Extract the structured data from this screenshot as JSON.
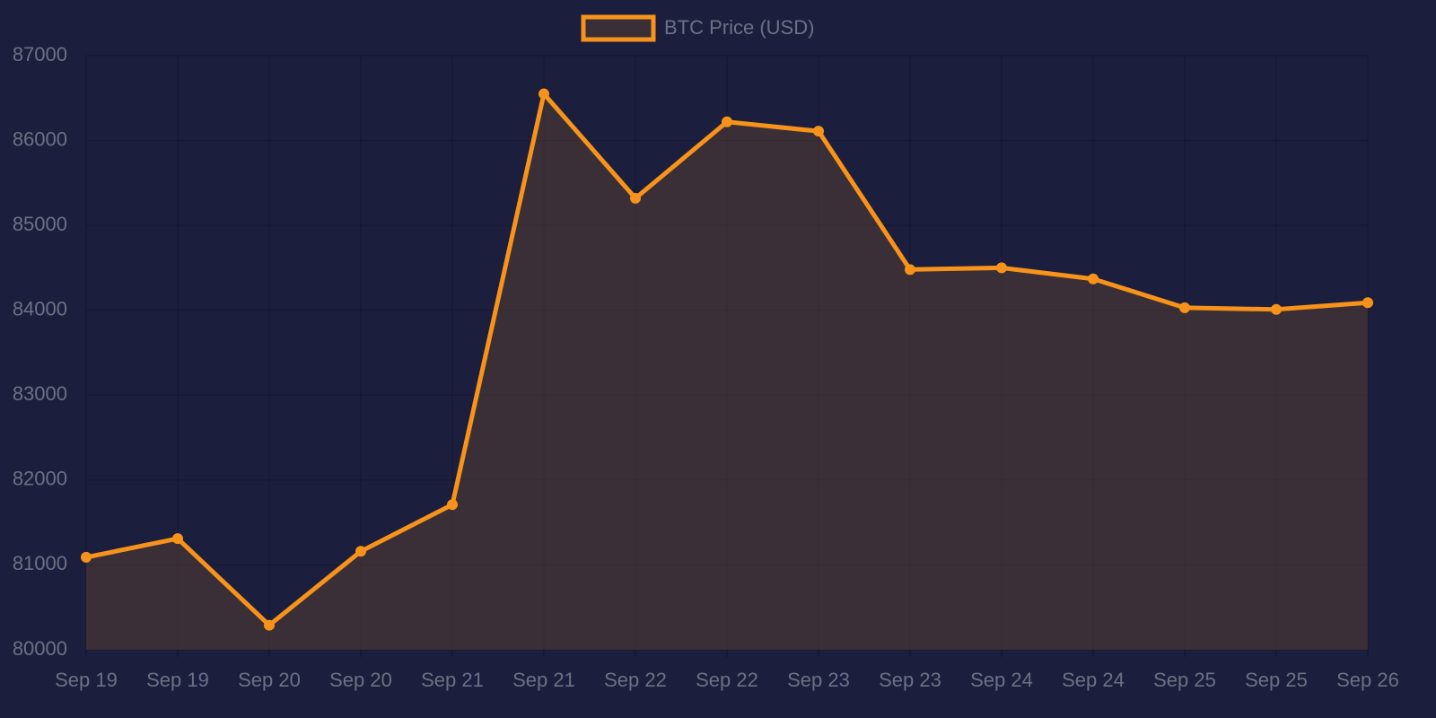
{
  "chart_data": {
    "type": "line",
    "categories": [
      "Sep 19",
      "Sep 19",
      "Sep 20",
      "Sep 20",
      "Sep 21",
      "Sep 21",
      "Sep 22",
      "Sep 22",
      "Sep 23",
      "Sep 23",
      "Sep 24",
      "Sep 24",
      "Sep 25",
      "Sep 25",
      "Sep 26"
    ],
    "series": [
      {
        "name": "BTC Price (USD)",
        "color": "#f7931a",
        "values": [
          81090,
          81310,
          80290,
          81160,
          81710,
          86550,
          85320,
          86220,
          86110,
          84480,
          84500,
          84370,
          84030,
          84010,
          84090
        ]
      }
    ],
    "ylim": [
      80000,
      87000
    ],
    "yticks": [
      80000,
      81000,
      82000,
      83000,
      84000,
      85000,
      86000,
      87000
    ],
    "grid": true,
    "fill": true,
    "legend": "top"
  }
}
